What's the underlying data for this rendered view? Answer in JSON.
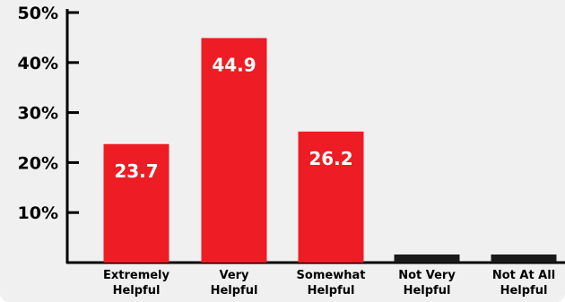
{
  "chart_data": {
    "type": "bar",
    "categories": [
      [
        "Extremely",
        "Helpful"
      ],
      [
        "Very",
        "Helpful"
      ],
      [
        "Somewhat",
        "Helpful"
      ],
      [
        "Not Very",
        "Helpful"
      ],
      [
        "Not At All",
        "Helpful"
      ]
    ],
    "values": [
      23.7,
      44.9,
      26.2,
      0.5,
      0.5
    ],
    "data_labels": [
      "23.7",
      "44.9",
      "26.2",
      "",
      ""
    ],
    "ylim": [
      0,
      50
    ],
    "yticks": [
      10,
      20,
      30,
      40,
      50
    ],
    "ytick_labels": [
      "10%",
      "20%",
      "30%",
      "40%",
      "50%"
    ],
    "title": "",
    "xlabel": "",
    "ylabel": "",
    "grid": false,
    "colors": {
      "bar": "#ee1c24",
      "bar_zero": "#1a1a1a",
      "axis": "#000000",
      "data_label": "#ffffff",
      "background": "#f0f0f0"
    }
  }
}
